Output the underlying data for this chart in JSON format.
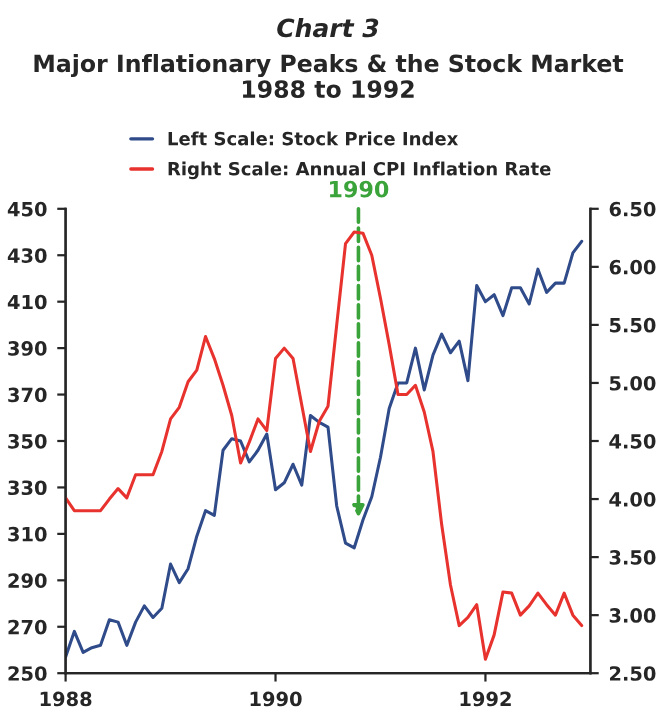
{
  "chart_data": {
    "type": "line",
    "title": "Chart 3",
    "subtitle": "Major Inflationary Peaks & the Stock Market\n1988 to 1992",
    "x": [
      1988.0,
      1988.083,
      1988.167,
      1988.25,
      1988.333,
      1988.417,
      1988.5,
      1988.583,
      1988.667,
      1988.75,
      1988.833,
      1988.917,
      1989.0,
      1989.083,
      1989.167,
      1989.25,
      1989.333,
      1989.417,
      1989.5,
      1989.583,
      1989.667,
      1989.75,
      1989.833,
      1989.917,
      1990.0,
      1990.083,
      1990.167,
      1990.25,
      1990.333,
      1990.417,
      1990.5,
      1990.583,
      1990.667,
      1990.75,
      1990.833,
      1990.917,
      1991.0,
      1991.083,
      1991.167,
      1991.25,
      1991.333,
      1991.417,
      1991.5,
      1991.583,
      1991.667,
      1991.75,
      1991.833,
      1991.917,
      1992.0,
      1992.083,
      1992.167,
      1992.25,
      1992.333,
      1992.417,
      1992.5,
      1992.583,
      1992.667,
      1992.75,
      1992.833,
      1992.917
    ],
    "series": [
      {
        "name": "Left Scale: Stock Price Index",
        "color": "#2f4b8a",
        "values": [
          257,
          268,
          259,
          261,
          262,
          273,
          272,
          262,
          272,
          279,
          274,
          278,
          297,
          289,
          295,
          309,
          320,
          318,
          346,
          351,
          350,
          341,
          346,
          353,
          329,
          332,
          340,
          331,
          361,
          358,
          356,
          322,
          306,
          304,
          316,
          326,
          343,
          364,
          375,
          375,
          390,
          372,
          387,
          396,
          388,
          393,
          376,
          417,
          410,
          413,
          404,
          416,
          416,
          409,
          424,
          414,
          418,
          418,
          431,
          436
        ]
      },
      {
        "name": "Right Scale: Annual CPI Inflation Rate",
        "color": "#e8322e",
        "axis": "y2",
        "values": [
          4.01,
          3.9,
          3.9,
          3.9,
          3.9,
          4.0,
          4.09,
          4.01,
          4.21,
          4.21,
          4.21,
          4.41,
          4.69,
          4.79,
          5.01,
          5.11,
          5.4,
          5.21,
          4.98,
          4.72,
          4.31,
          4.49,
          4.69,
          4.59,
          5.21,
          5.3,
          5.21,
          4.81,
          4.41,
          4.67,
          4.8,
          5.5,
          6.2,
          6.3,
          6.29,
          6.1,
          5.73,
          5.33,
          4.9,
          4.9,
          4.98,
          4.75,
          4.41,
          3.78,
          3.26,
          2.91,
          2.98,
          3.09,
          2.62,
          2.83,
          3.2,
          3.19,
          3.0,
          3.08,
          3.19,
          3.09,
          3.0,
          3.19,
          3.0,
          2.91
        ]
      }
    ],
    "xlim": [
      1988,
      1993
    ],
    "xticks": [
      1988,
      1990,
      1992
    ],
    "ylim": [
      250,
      450
    ],
    "yticks": [
      250,
      270,
      290,
      310,
      330,
      350,
      370,
      390,
      410,
      430,
      450
    ],
    "y2lim": [
      2.5,
      6.5
    ],
    "y2ticks": [
      {
        "value": 2.5,
        "label": "2.50"
      },
      {
        "value": 3.0,
        "label": "3.00"
      },
      {
        "value": 3.5,
        "label": "3.50"
      },
      {
        "value": 4.0,
        "label": "4.00"
      },
      {
        "value": 4.5,
        "label": "4.50"
      },
      {
        "value": 5.0,
        "label": "5.00"
      },
      {
        "value": 5.5,
        "label": "5.50"
      },
      {
        "value": 6.0,
        "label": "6.00"
      },
      {
        "value": 6.5,
        "label": "6.50"
      }
    ],
    "annotations": [
      {
        "text": "1990",
        "x": 1990.79,
        "y": 317
      }
    ],
    "legend": "top",
    "grid": false,
    "marker": "none",
    "line_style": "solid"
  }
}
